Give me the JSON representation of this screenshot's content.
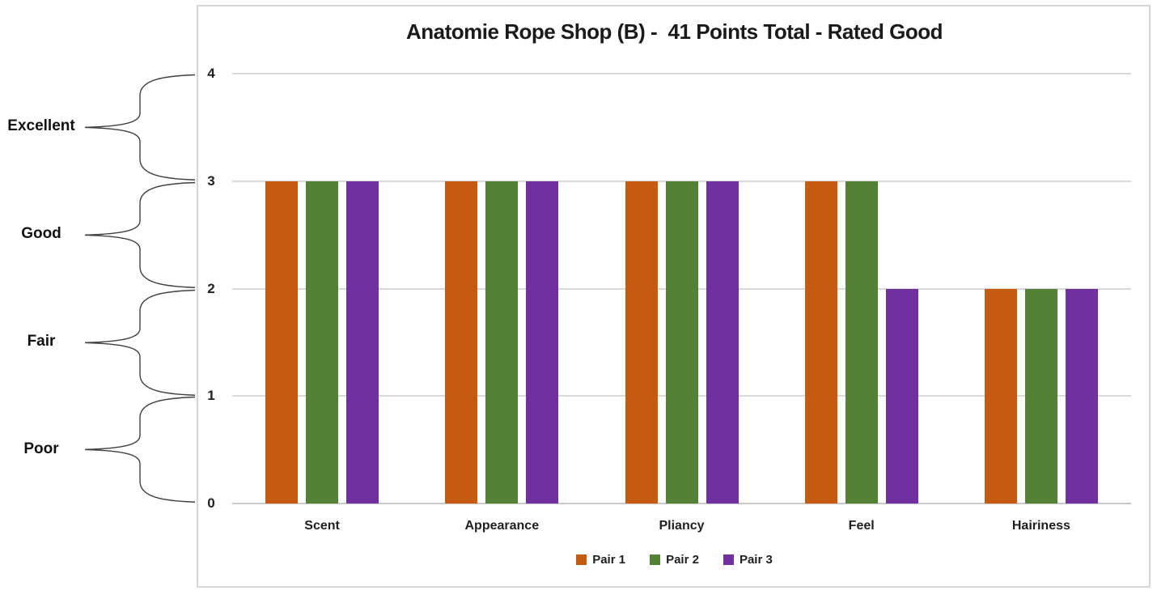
{
  "chart_data": {
    "type": "bar",
    "title": "Anatomie Rope Shop (B) -  41 Points Total - Rated Good",
    "categories": [
      "Scent",
      "Appearance",
      "Pliancy",
      "Feel",
      "Hairiness"
    ],
    "series": [
      {
        "name": "Pair 1",
        "color": "#C55A11",
        "values": [
          3,
          3,
          3,
          3,
          2
        ]
      },
      {
        "name": "Pair 2",
        "color": "#538135",
        "values": [
          3,
          3,
          3,
          3,
          2
        ]
      },
      {
        "name": "Pair 3",
        "color": "#7030A0",
        "values": [
          3,
          3,
          3,
          2,
          2
        ]
      }
    ],
    "ylim": [
      0,
      4
    ],
    "yticks": [
      0,
      1,
      2,
      3,
      4
    ],
    "rating_bands": [
      {
        "label": "Excellent",
        "from": 3,
        "to": 4
      },
      {
        "label": "Good",
        "from": 2,
        "to": 3
      },
      {
        "label": "Fair",
        "from": 1,
        "to": 2
      },
      {
        "label": "Poor",
        "from": 0,
        "to": 1
      }
    ],
    "grid": true,
    "legend_position": "bottom",
    "colors": {
      "gridline": "#d9d9d9",
      "chart_border": "#d6d6d6",
      "text": "#1f1f1f",
      "brace_stroke": "#404040"
    }
  }
}
